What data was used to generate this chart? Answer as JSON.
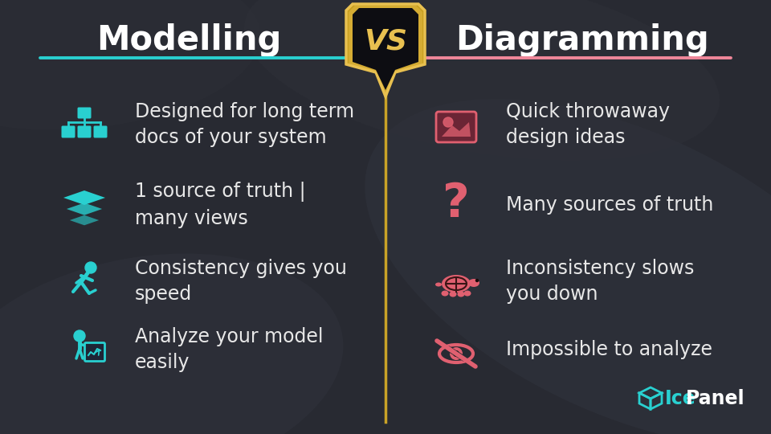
{
  "title_left": "Modelling",
  "title_right": "Diagramming",
  "vs_text": "VS",
  "background_color": "#282a32",
  "line_color_left": "#29d0d0",
  "line_color_right": "#f0879a",
  "divider_color": "#c9a227",
  "text_color": "#e8e8e8",
  "title_color": "#ffffff",
  "icon_color_left": "#29d0d0",
  "icon_color_right": "#e06070",
  "left_items": [
    "Designed for long term\ndocs of your system",
    "1 source of truth |\nmany views",
    "Consistency gives you\nspeed",
    "Analyze your model\neasily"
  ],
  "right_items": [
    "Quick throwaway\ndesign ideas",
    "Many sources of truth",
    "Inconsistency slows\nyou down",
    "Impossible to analyze"
  ],
  "icepanel_text": "IcePanel",
  "gold_outer": "#c9a020",
  "gold_mid": "#e8c050",
  "gold_inner_bg": "#0d0d0d",
  "shield_bg": "#0d0d12"
}
